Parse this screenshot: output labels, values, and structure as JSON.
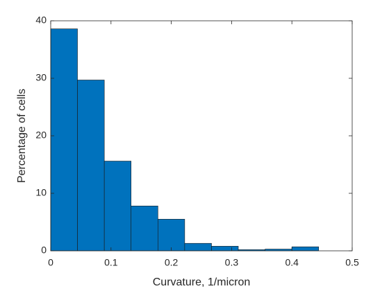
{
  "chart_data": {
    "type": "histogram",
    "xlabel": "Curvature, 1/micron",
    "ylabel": "Percentage of cells",
    "bins": [
      0,
      0.0444,
      0.0889,
      0.1333,
      0.1778,
      0.2222,
      0.2667,
      0.3111,
      0.3556,
      0.4,
      0.4444
    ],
    "values": [
      38.6,
      29.7,
      15.6,
      7.8,
      5.5,
      1.3,
      0.8,
      0.2,
      0.3,
      0.7
    ],
    "color": "#0072bd",
    "xlim": [
      0,
      0.5
    ],
    "xticks": [
      0,
      0.1,
      0.2,
      0.3,
      0.4,
      0.5
    ],
    "ylim": [
      0,
      40
    ],
    "yticks": [
      0,
      10,
      20,
      30,
      40
    ],
    "grid": false
  }
}
